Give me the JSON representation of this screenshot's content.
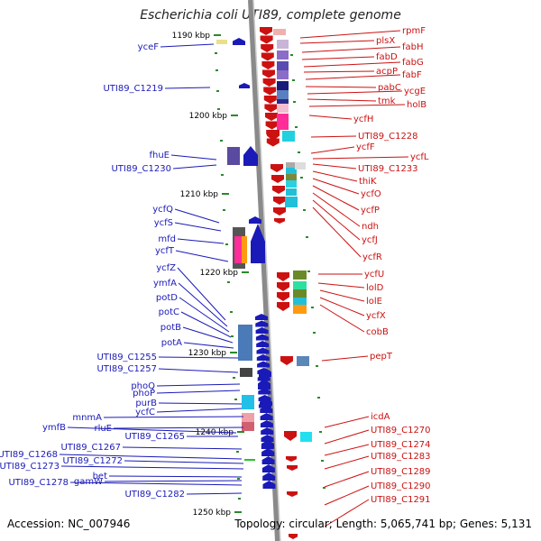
{
  "title": "Escherichia coli UTI89, complete genome",
  "accession": "Accession: NC_007946",
  "stats": "Topology: circular; Length: 5,065,741 bp; Genes: 5,131",
  "colors": {
    "left": "#1a1ab8",
    "right": "#cc1111",
    "axis": "#8a8a8a",
    "tick": "#2a8a2a"
  },
  "kbp_ticks": [
    {
      "label": "1190 kbp",
      "kbp": 1190
    },
    {
      "label": "1200 kbp",
      "kbp": 1200
    },
    {
      "label": "1210 kbp",
      "kbp": 1210
    },
    {
      "label": "1220 kbp",
      "kbp": 1220
    },
    {
      "label": "1230 kbp",
      "kbp": 1230
    },
    {
      "label": "1240 kbp",
      "kbp": 1240
    },
    {
      "label": "1250 kbp",
      "kbp": 1250
    }
  ],
  "left_labels": [
    "yceF",
    "UTI89_C1219",
    "fhuE",
    "UTI89_C1230",
    "ycfQ",
    "ycfS",
    "mfd",
    "ycfT",
    "ycfZ",
    "ymfA",
    "potD",
    "potC",
    "potB",
    "potA",
    "UTI89_C1255",
    "UTI89_C1257",
    "phoQ",
    "phoP",
    "purB",
    "ycfC",
    "mnmA",
    "rluE",
    "ymfB",
    "UTI89_C1265",
    "UTI89_C1267",
    "UTI89_C1268",
    "UTI89_C1272",
    "UTI89_C1273",
    "bet",
    "gamW",
    "UTI89_C1278",
    "UTI89_C1282"
  ],
  "right_labels": [
    "rpmF",
    "plsX",
    "fabH",
    "fabD",
    "fabG",
    "acpP",
    "fabF",
    "pabC",
    "ycgE",
    "tmk",
    "holB",
    "ycfH",
    "UTI89_C1228",
    "ycfF",
    "ycfL",
    "UTI89_C1233",
    "thiK",
    "ycfO",
    "ycfP",
    "ndh",
    "ycfJ",
    "ycfR",
    "ycfU",
    "lolD",
    "lolE",
    "ycfX",
    "cobB",
    "pepT",
    "icdA",
    "UTI89_C1270",
    "UTI89_C1274",
    "UTI89_C1283",
    "UTI89_C1289",
    "UTI89_C1290",
    "UTI89_C1291"
  ]
}
